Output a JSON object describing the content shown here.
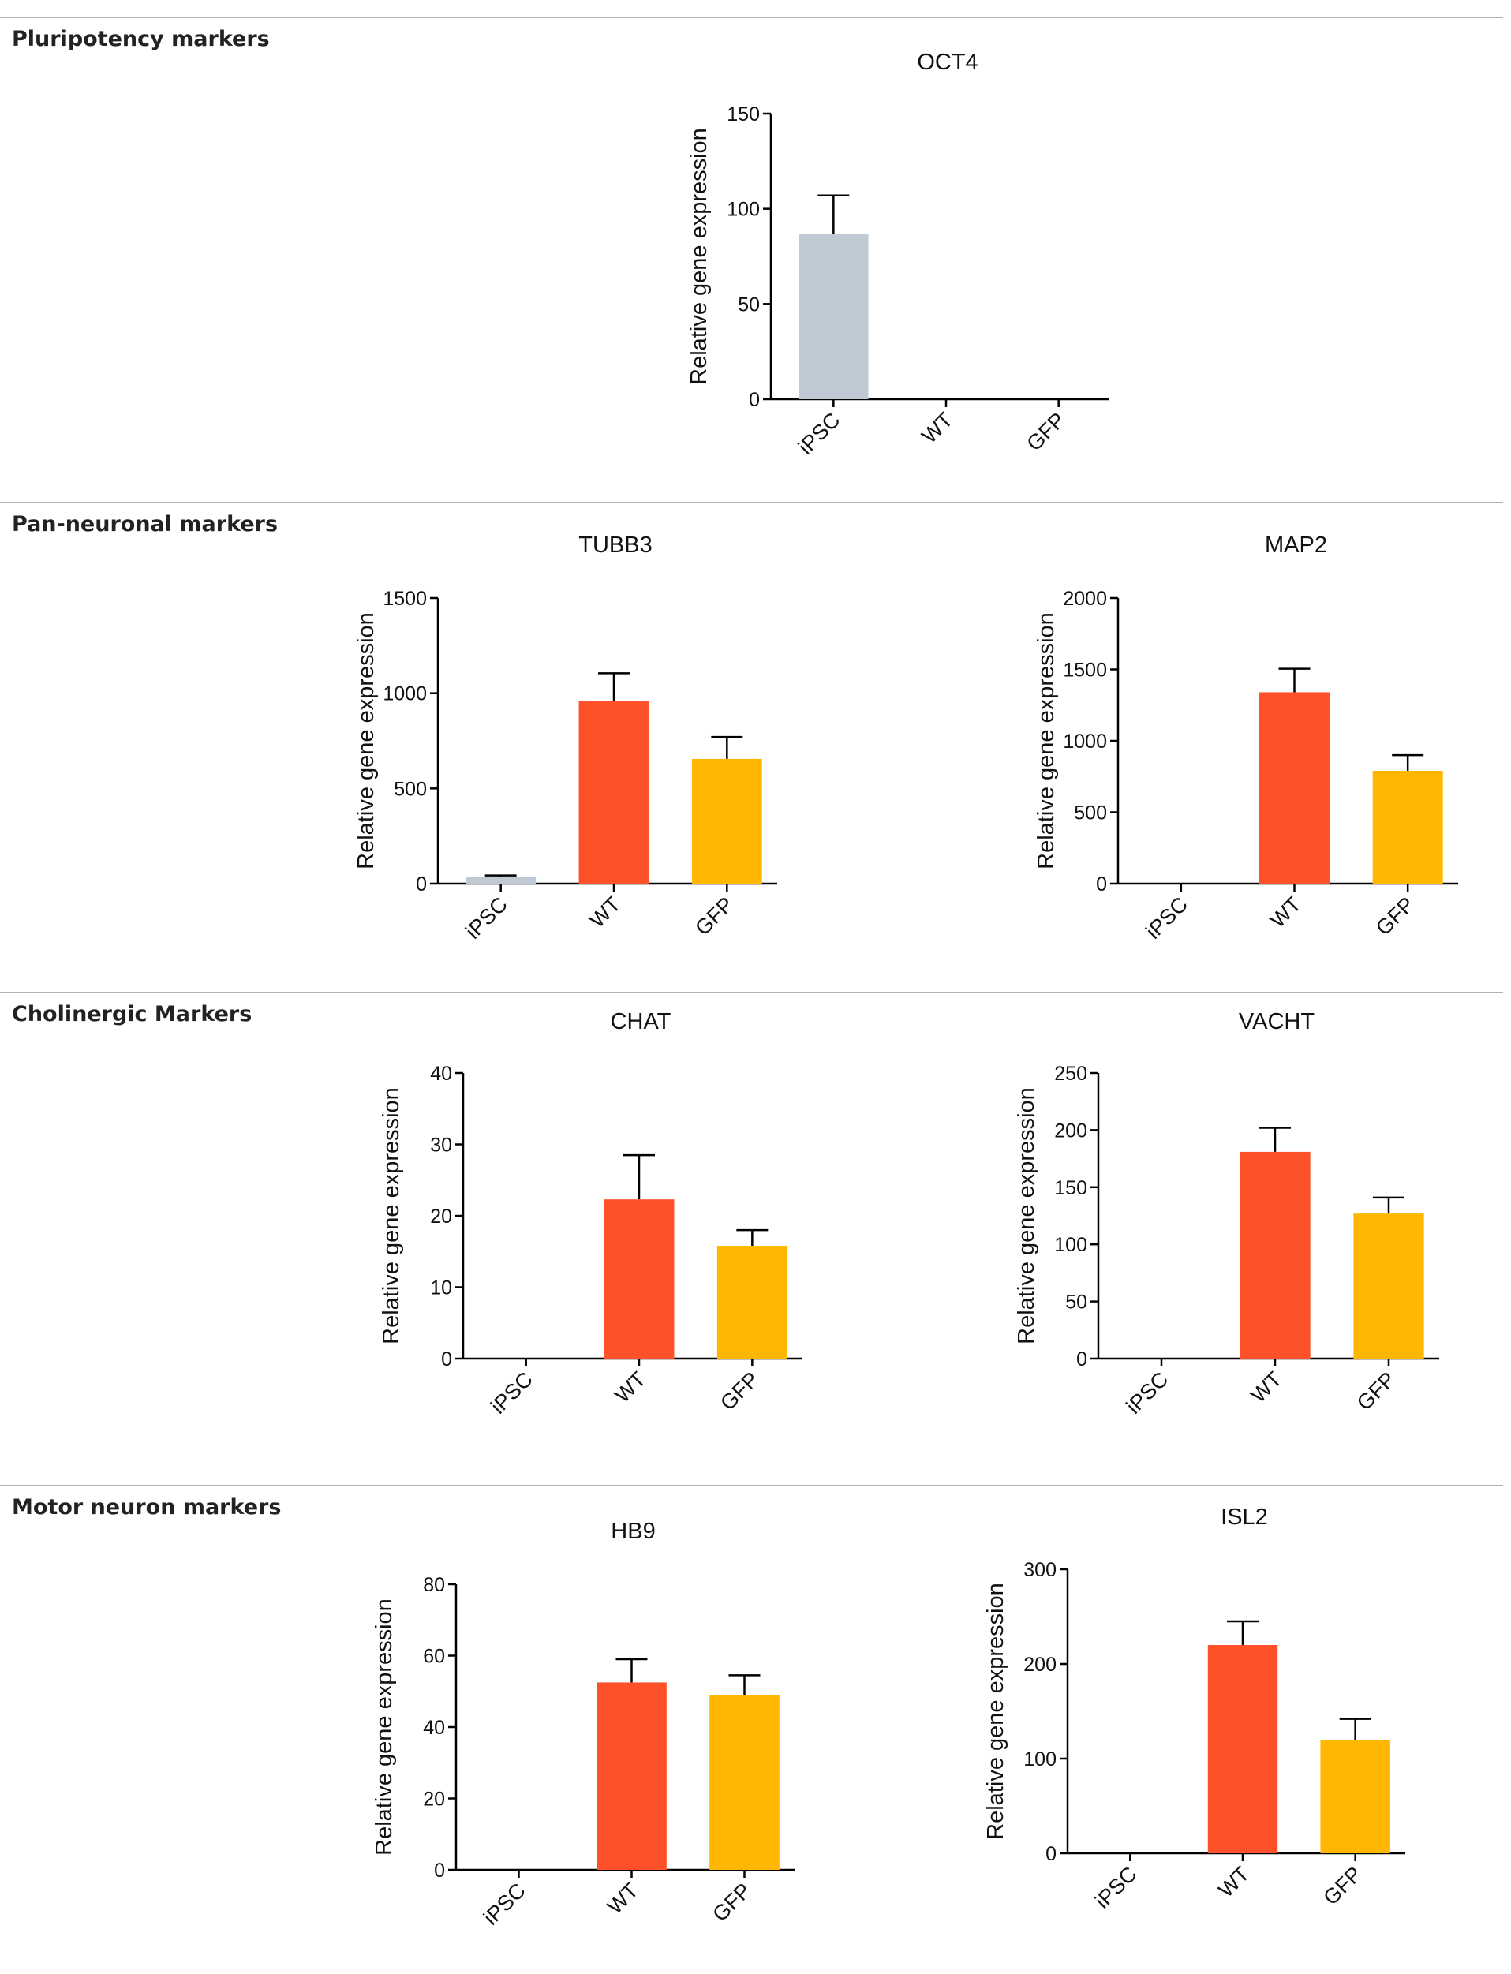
{
  "sections": [
    "Pluripotency markers",
    "Pan-neuronal markers",
    "Cholinergic Markers",
    "Motor neuron markers"
  ],
  "chart_data": [
    {
      "type": "bar",
      "title": "OCT4",
      "ylabel": "Relative gene expression",
      "categories": [
        "iPSC",
        "WT",
        "GFP"
      ],
      "values": [
        87,
        0,
        0
      ],
      "errors": [
        20,
        null,
        null
      ],
      "colors": [
        "#bfc9d4",
        "#fe5029",
        "#ffb703"
      ],
      "ylim": [
        0,
        150
      ],
      "yticks": [
        0,
        50,
        100,
        150
      ]
    },
    {
      "type": "bar",
      "title": "TUBB3",
      "ylabel": "Relative gene expression",
      "categories": [
        "iPSC",
        "WT",
        "GFP"
      ],
      "values": [
        35,
        960,
        655
      ],
      "errors": [
        8,
        145,
        115
      ],
      "colors": [
        "#bfc9d4",
        "#fe5029",
        "#ffb703"
      ],
      "ylim": [
        0,
        1500
      ],
      "yticks": [
        0,
        500,
        1000,
        1500
      ]
    },
    {
      "type": "bar",
      "title": "MAP2",
      "ylabel": "Relative gene expression",
      "categories": [
        "iPSC",
        "WT",
        "GFP"
      ],
      "values": [
        0,
        1340,
        790
      ],
      "errors": [
        null,
        165,
        110
      ],
      "colors": [
        "#bfc9d4",
        "#fe5029",
        "#ffb703"
      ],
      "ylim": [
        0,
        2000
      ],
      "yticks": [
        0,
        500,
        1000,
        1500,
        2000
      ]
    },
    {
      "type": "bar",
      "title": "CHAT",
      "ylabel": "Relative gene expression",
      "categories": [
        "iPSC",
        "WT",
        "GFP"
      ],
      "values": [
        0,
        22.3,
        15.8
      ],
      "errors": [
        null,
        6.2,
        2.2
      ],
      "colors": [
        "#bfc9d4",
        "#fe5029",
        "#ffb703"
      ],
      "ylim": [
        0,
        40
      ],
      "yticks": [
        0,
        10,
        20,
        30,
        40
      ]
    },
    {
      "type": "bar",
      "title": "VACHT",
      "ylabel": "Relative gene expression",
      "categories": [
        "iPSC",
        "WT",
        "GFP"
      ],
      "values": [
        0,
        181,
        127
      ],
      "errors": [
        null,
        21,
        14
      ],
      "colors": [
        "#bfc9d4",
        "#fe5029",
        "#ffb703"
      ],
      "ylim": [
        0,
        250
      ],
      "yticks": [
        0,
        50,
        100,
        150,
        200,
        250
      ]
    },
    {
      "type": "bar",
      "title": "HB9",
      "ylabel": "Relative gene expression",
      "categories": [
        "iPSC",
        "WT",
        "GFP"
      ],
      "values": [
        0,
        52.5,
        49
      ],
      "errors": [
        null,
        6.5,
        5.5
      ],
      "colors": [
        "#bfc9d4",
        "#fe5029",
        "#ffb703"
      ],
      "ylim": [
        0,
        80
      ],
      "yticks": [
        0,
        20,
        40,
        60,
        80
      ]
    },
    {
      "type": "bar",
      "title": "ISL2",
      "ylabel": "Relative gene expression",
      "categories": [
        "iPSC",
        "WT",
        "GFP"
      ],
      "values": [
        0,
        220,
        120
      ],
      "errors": [
        null,
        25,
        22
      ],
      "colors": [
        "#bfc9d4",
        "#fe5029",
        "#ffb703"
      ],
      "ylim": [
        0,
        300
      ],
      "yticks": [
        0,
        100,
        200,
        300
      ]
    }
  ]
}
